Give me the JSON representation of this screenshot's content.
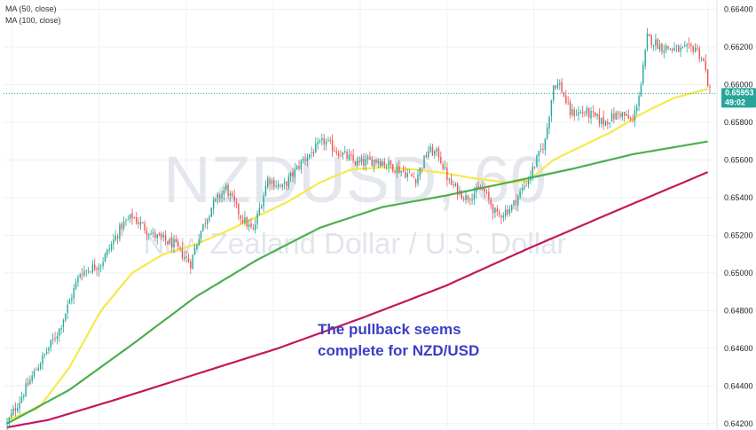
{
  "legend": {
    "ma50": "MA (50, close)",
    "ma100": "MA (100, close)"
  },
  "watermark": {
    "symbol": "NZDUSD, 60",
    "description": "New Zealand Dollar / U.S. Dollar"
  },
  "annotation": {
    "line1": "The pullback seems",
    "line2": "complete for NZD/USD"
  },
  "price_tag": {
    "price": "0.65953",
    "countdown": "49:02"
  },
  "colors": {
    "up_candle": "#26a69a",
    "down_candle": "#ef5350",
    "ma50": "#f5e94a",
    "ma100": "#4caf50",
    "ma200": "#c2185b",
    "price_tag_bg": "#26a69a",
    "annotation": "#3b3ec4"
  },
  "chart_data": {
    "type": "candlestick",
    "ylim": [
      0.6418,
      0.6644
    ],
    "y_ticks": [
      "0.66400",
      "0.66200",
      "0.66000",
      "0.65800",
      "0.65600",
      "0.65400",
      "0.65200",
      "0.65000",
      "0.64800",
      "0.64600",
      "0.64400",
      "0.64200"
    ],
    "y_tick_values": [
      0.664,
      0.662,
      0.66,
      0.658,
      0.656,
      0.654,
      0.652,
      0.65,
      0.648,
      0.646,
      0.644,
      0.642
    ],
    "grid": true,
    "current_price": 0.65953,
    "price_anchors": [
      [
        0,
        0.642
      ],
      [
        12,
        0.6445
      ],
      [
        25,
        0.647
      ],
      [
        35,
        0.65
      ],
      [
        45,
        0.6505
      ],
      [
        55,
        0.6525
      ],
      [
        60,
        0.653
      ],
      [
        70,
        0.652
      ],
      [
        80,
        0.6515
      ],
      [
        88,
        0.6505
      ],
      [
        92,
        0.652
      ],
      [
        98,
        0.6535
      ],
      [
        105,
        0.6545
      ],
      [
        112,
        0.653
      ],
      [
        118,
        0.6522
      ],
      [
        125,
        0.655
      ],
      [
        132,
        0.6545
      ],
      [
        142,
        0.656
      ],
      [
        152,
        0.657
      ],
      [
        158,
        0.6565
      ],
      [
        168,
        0.6558
      ],
      [
        178,
        0.656
      ],
      [
        188,
        0.6555
      ],
      [
        196,
        0.655
      ],
      [
        202,
        0.6565
      ],
      [
        207,
        0.6563
      ],
      [
        212,
        0.6548
      ],
      [
        220,
        0.654
      ],
      [
        228,
        0.6545
      ],
      [
        235,
        0.653
      ],
      [
        242,
        0.6535
      ],
      [
        250,
        0.655
      ],
      [
        258,
        0.657
      ],
      [
        262,
        0.66
      ],
      [
        265,
        0.66
      ],
      [
        270,
        0.6585
      ],
      [
        278,
        0.6585
      ],
      [
        286,
        0.658
      ],
      [
        294,
        0.6585
      ],
      [
        300,
        0.658
      ],
      [
        304,
        0.66
      ],
      [
        307,
        0.6625
      ],
      [
        314,
        0.662
      ],
      [
        324,
        0.6618
      ],
      [
        330,
        0.662
      ],
      [
        334,
        0.6612
      ],
      [
        337,
        0.6596
      ]
    ],
    "ma_curves": [
      {
        "name": "MA (50, close)",
        "points": [
          [
            0,
            0.6422
          ],
          [
            15,
            0.6428
          ],
          [
            30,
            0.645
          ],
          [
            45,
            0.648
          ],
          [
            60,
            0.65
          ],
          [
            75,
            0.651
          ],
          [
            90,
            0.6515
          ],
          [
            105,
            0.6522
          ],
          [
            120,
            0.653
          ],
          [
            135,
            0.6538
          ],
          [
            150,
            0.6548
          ],
          [
            165,
            0.6555
          ],
          [
            180,
            0.6556
          ],
          [
            195,
            0.6555
          ],
          [
            210,
            0.6553
          ],
          [
            225,
            0.655
          ],
          [
            240,
            0.6548
          ],
          [
            250,
            0.6549
          ],
          [
            262,
            0.656
          ],
          [
            275,
            0.6567
          ],
          [
            290,
            0.6575
          ],
          [
            305,
            0.6585
          ],
          [
            320,
            0.6593
          ],
          [
            337,
            0.6598
          ]
        ]
      },
      {
        "name": "MA (100, close)",
        "points": [
          [
            0,
            0.642
          ],
          [
            30,
            0.6438
          ],
          [
            60,
            0.6462
          ],
          [
            90,
            0.6487
          ],
          [
            120,
            0.6507
          ],
          [
            150,
            0.6524
          ],
          [
            180,
            0.6535
          ],
          [
            210,
            0.6541
          ],
          [
            240,
            0.6548
          ],
          [
            270,
            0.6555
          ],
          [
            300,
            0.6563
          ],
          [
            337,
            0.657
          ]
        ]
      },
      {
        "name": "",
        "points": [
          [
            0,
            0.6418
          ],
          [
            20,
            0.6422
          ],
          [
            50,
            0.6432
          ],
          [
            90,
            0.6446
          ],
          [
            130,
            0.646
          ],
          [
            170,
            0.6476
          ],
          [
            210,
            0.6493
          ],
          [
            250,
            0.6513
          ],
          [
            290,
            0.6532
          ],
          [
            337,
            0.6554
          ]
        ]
      }
    ],
    "bar_count": 338
  }
}
